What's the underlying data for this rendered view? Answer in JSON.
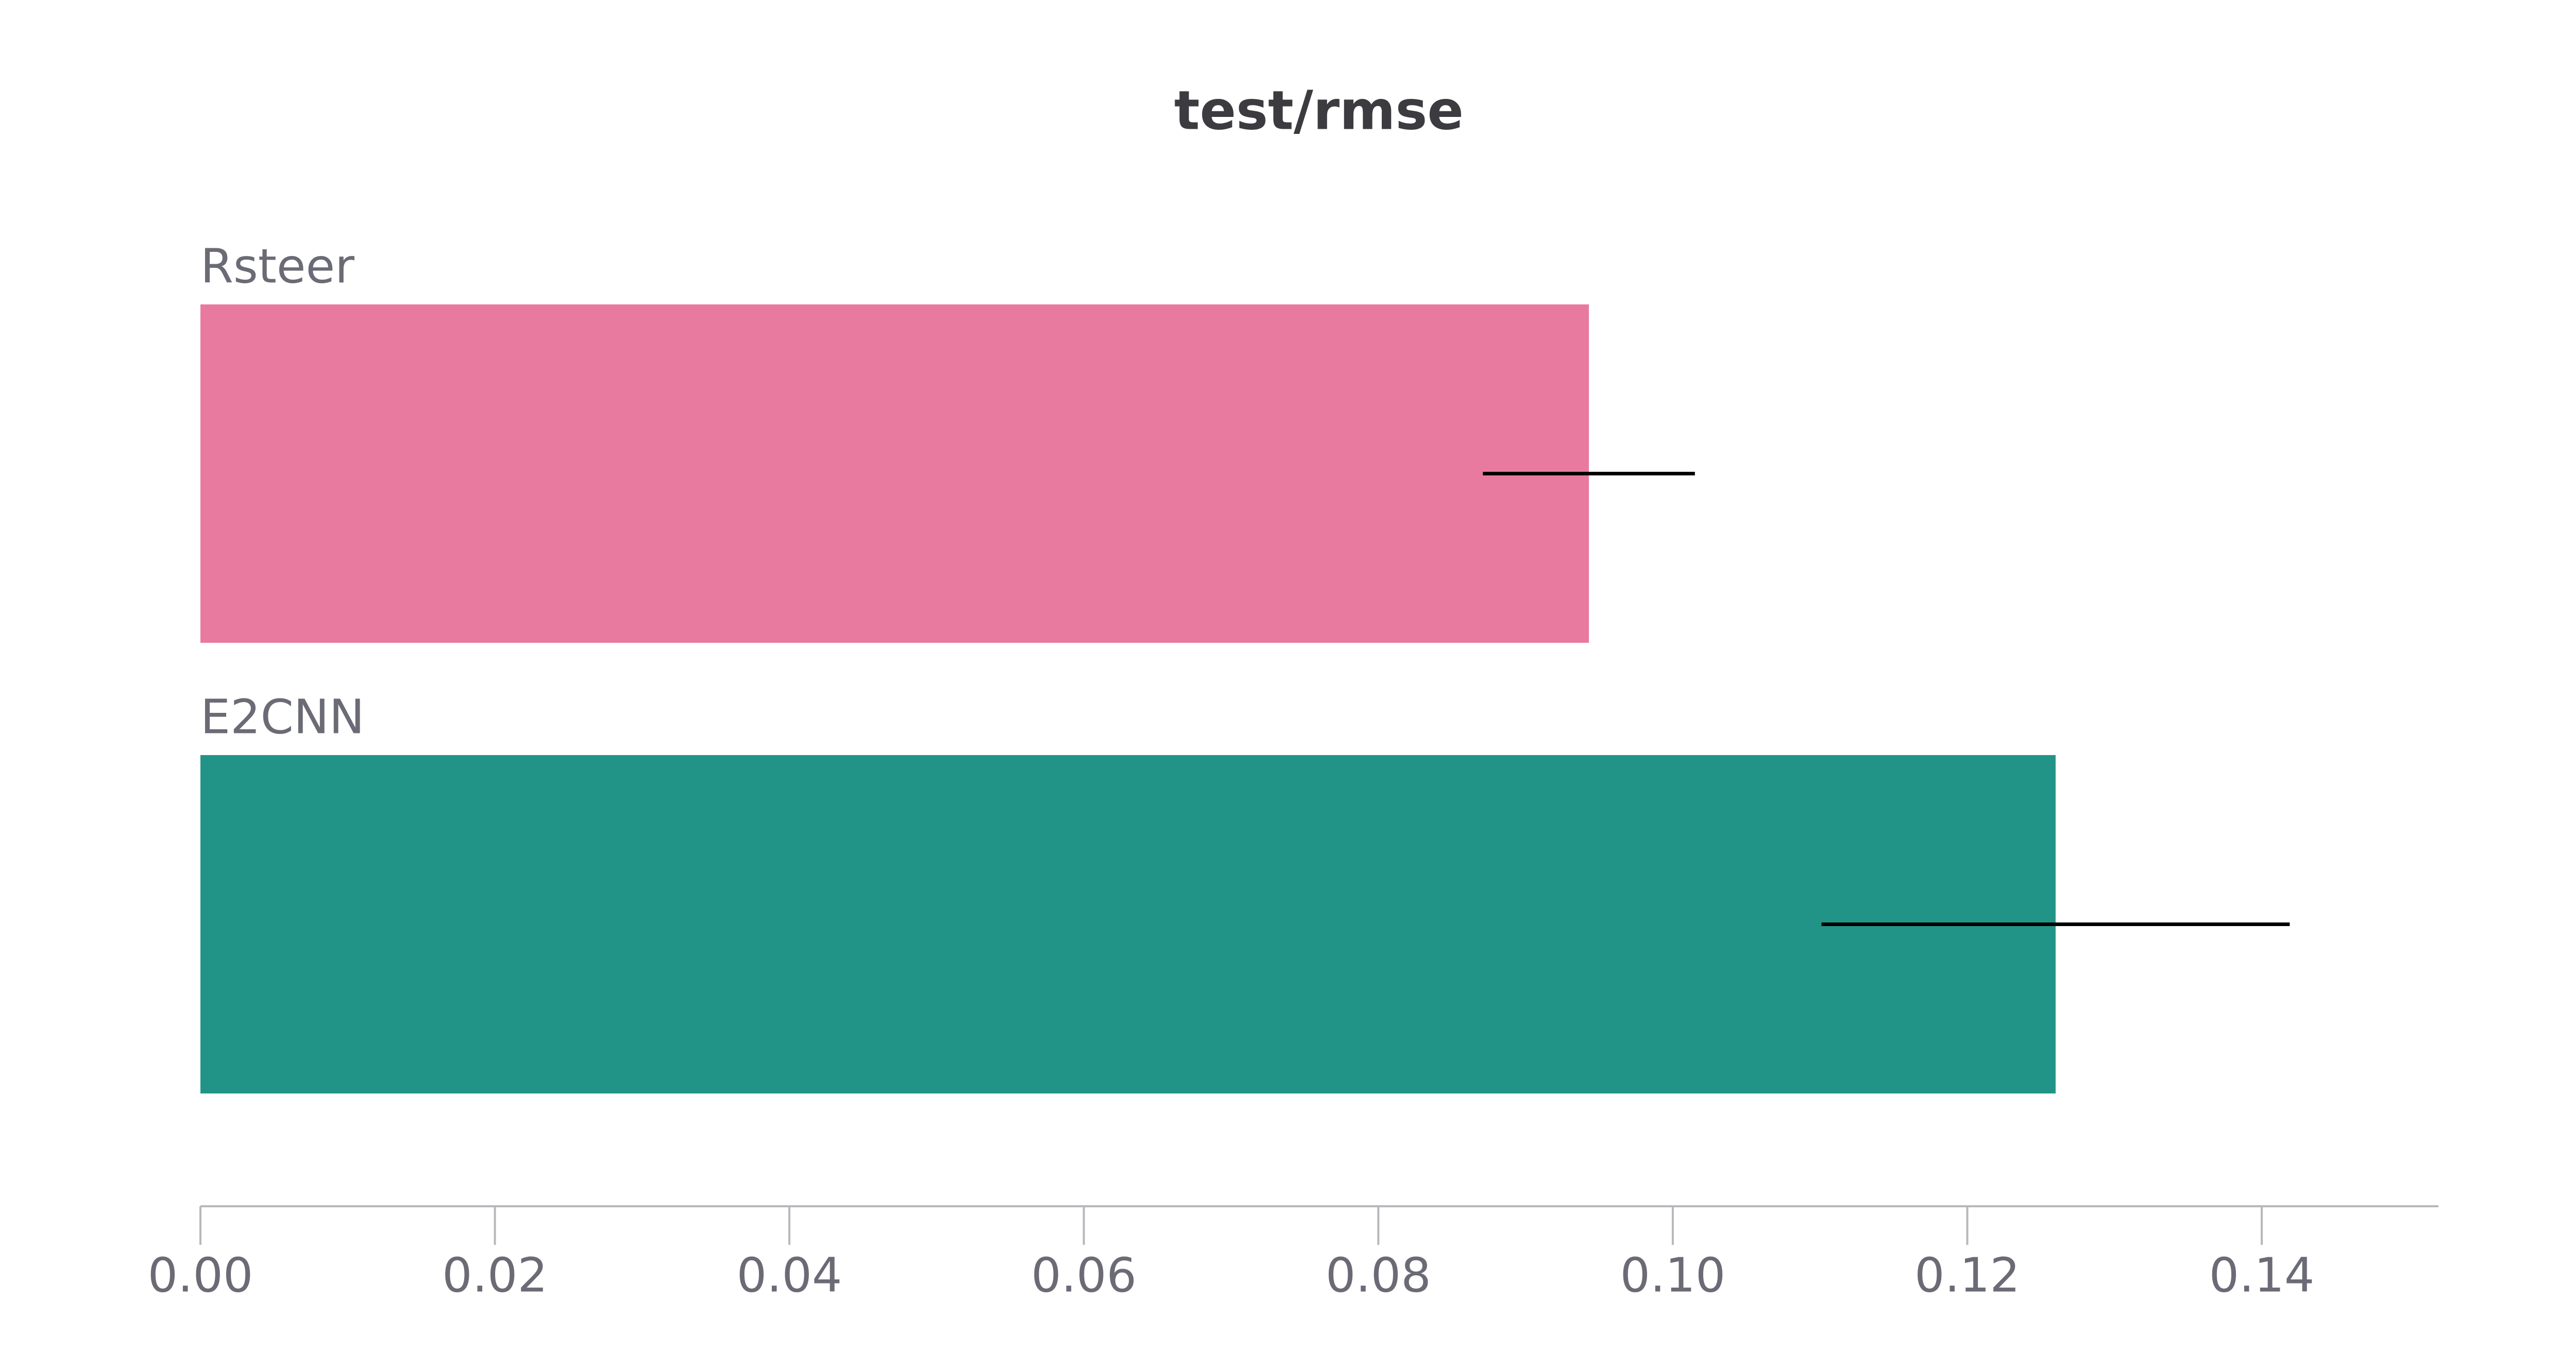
{
  "chart_data": {
    "type": "hbar",
    "title": "test/rmse",
    "categories": [
      "Rsteer",
      "E2CNN"
    ],
    "values": [
      0.0943,
      0.126
    ],
    "errors": [
      0.0072,
      0.0159
    ],
    "colors": [
      "#e87a9f",
      "#229487"
    ],
    "error_color": "#000000",
    "xlim": [
      0,
      0.152
    ],
    "xticks": [
      {
        "value": 0,
        "label": "0.00"
      },
      {
        "value": 0.02,
        "label": "0.02"
      },
      {
        "value": 0.04,
        "label": "0.04"
      },
      {
        "value": 0.06,
        "label": "0.06"
      },
      {
        "value": 0.08,
        "label": "0.08"
      },
      {
        "value": 0.1,
        "label": "0.10"
      },
      {
        "value": 0.12,
        "label": "0.12"
      },
      {
        "value": 0.14,
        "label": "0.14"
      }
    ]
  }
}
